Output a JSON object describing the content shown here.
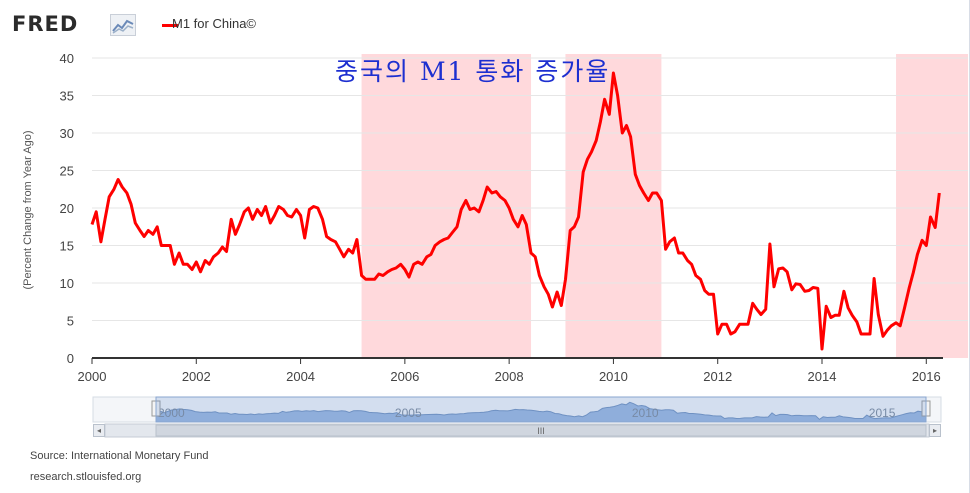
{
  "header": {
    "logo_text": "FRED",
    "logo_icon": "line-graph-icon",
    "series_legend": "M1 for China©"
  },
  "overlay_title": "중국의 M1 통화 증가율",
  "source": {
    "source_text": "Source: International Monetary Fund",
    "site_text": "research.stlouisfed.org"
  },
  "navigator": {
    "tick_labels": [
      "2000",
      "2005",
      "2010",
      "2015"
    ],
    "scroll_grip": "III",
    "left_arrow": "◂",
    "right_arrow": "▸"
  },
  "colors": {
    "series": "#ff0000",
    "recession_band": "#ffd9dc",
    "title_text": "#1d2fd0",
    "navigator_fill": "#9ab6de"
  },
  "chart_data": {
    "type": "line",
    "title": "",
    "ylabel": "(Percent Change from Year Ago)",
    "xlabel": "",
    "xlim": [
      2000,
      2016.8
    ],
    "ylim": [
      0,
      40
    ],
    "y_ticks": [
      0,
      5,
      10,
      15,
      20,
      25,
      30,
      35,
      40
    ],
    "x_ticks": [
      2000,
      2002,
      2004,
      2006,
      2008,
      2010,
      2012,
      2014,
      2016
    ],
    "grid": true,
    "shaded_periods": [
      [
        2005.17,
        2008.42
      ],
      [
        2009.08,
        2010.92
      ],
      [
        2015.42,
        2016.8
      ]
    ],
    "series": [
      {
        "name": "M1 for China©",
        "points": [
          [
            2000.0,
            17.8
          ],
          [
            2000.08,
            19.5
          ],
          [
            2000.17,
            15.5
          ],
          [
            2000.25,
            18.5
          ],
          [
            2000.33,
            21.5
          ],
          [
            2000.42,
            22.5
          ],
          [
            2000.5,
            23.8
          ],
          [
            2000.58,
            22.8
          ],
          [
            2000.67,
            22.0
          ],
          [
            2000.75,
            20.5
          ],
          [
            2000.83,
            18.0
          ],
          [
            2000.92,
            17.0
          ],
          [
            2001.0,
            16.2
          ],
          [
            2001.08,
            17.0
          ],
          [
            2001.17,
            16.5
          ],
          [
            2001.25,
            17.5
          ],
          [
            2001.33,
            15.0
          ],
          [
            2001.42,
            15.0
          ],
          [
            2001.5,
            15.0
          ],
          [
            2001.58,
            12.5
          ],
          [
            2001.67,
            14.0
          ],
          [
            2001.75,
            12.5
          ],
          [
            2001.83,
            12.5
          ],
          [
            2001.92,
            11.8
          ],
          [
            2002.0,
            12.8
          ],
          [
            2002.08,
            11.5
          ],
          [
            2002.17,
            13.0
          ],
          [
            2002.25,
            12.5
          ],
          [
            2002.33,
            13.5
          ],
          [
            2002.42,
            14.0
          ],
          [
            2002.5,
            14.8
          ],
          [
            2002.58,
            14.2
          ],
          [
            2002.67,
            18.5
          ],
          [
            2002.75,
            16.5
          ],
          [
            2002.83,
            17.8
          ],
          [
            2002.92,
            19.5
          ],
          [
            2003.0,
            20.0
          ],
          [
            2003.08,
            18.5
          ],
          [
            2003.17,
            19.8
          ],
          [
            2003.25,
            19.0
          ],
          [
            2003.33,
            20.2
          ],
          [
            2003.42,
            18.0
          ],
          [
            2003.5,
            19.0
          ],
          [
            2003.58,
            20.2
          ],
          [
            2003.67,
            19.8
          ],
          [
            2003.75,
            19.0
          ],
          [
            2003.83,
            18.8
          ],
          [
            2003.92,
            19.8
          ],
          [
            2004.0,
            19.0
          ],
          [
            2004.08,
            16.0
          ],
          [
            2004.17,
            19.8
          ],
          [
            2004.25,
            20.2
          ],
          [
            2004.33,
            20.0
          ],
          [
            2004.42,
            18.5
          ],
          [
            2004.5,
            16.2
          ],
          [
            2004.58,
            15.8
          ],
          [
            2004.67,
            15.5
          ],
          [
            2004.75,
            14.5
          ],
          [
            2004.83,
            13.5
          ],
          [
            2004.92,
            14.5
          ],
          [
            2005.0,
            14.0
          ],
          [
            2005.08,
            15.8
          ],
          [
            2005.17,
            11.0
          ],
          [
            2005.25,
            10.5
          ],
          [
            2005.33,
            10.5
          ],
          [
            2005.42,
            10.5
          ],
          [
            2005.5,
            11.2
          ],
          [
            2005.58,
            11.0
          ],
          [
            2005.67,
            11.5
          ],
          [
            2005.75,
            11.8
          ],
          [
            2005.83,
            12.0
          ],
          [
            2005.92,
            12.5
          ],
          [
            2006.0,
            11.8
          ],
          [
            2006.08,
            10.8
          ],
          [
            2006.17,
            12.5
          ],
          [
            2006.25,
            12.8
          ],
          [
            2006.33,
            12.5
          ],
          [
            2006.42,
            13.5
          ],
          [
            2006.5,
            13.8
          ],
          [
            2006.58,
            15.0
          ],
          [
            2006.67,
            15.5
          ],
          [
            2006.75,
            15.8
          ],
          [
            2006.83,
            16.0
          ],
          [
            2006.92,
            16.8
          ],
          [
            2007.0,
            17.5
          ],
          [
            2007.08,
            19.8
          ],
          [
            2007.17,
            21.0
          ],
          [
            2007.25,
            19.8
          ],
          [
            2007.33,
            20.0
          ],
          [
            2007.42,
            19.5
          ],
          [
            2007.5,
            21.0
          ],
          [
            2007.58,
            22.8
          ],
          [
            2007.67,
            22.0
          ],
          [
            2007.75,
            22.2
          ],
          [
            2007.83,
            21.5
          ],
          [
            2007.92,
            21.0
          ],
          [
            2008.0,
            20.0
          ],
          [
            2008.08,
            18.5
          ],
          [
            2008.17,
            17.5
          ],
          [
            2008.25,
            19.0
          ],
          [
            2008.33,
            17.8
          ],
          [
            2008.42,
            14.0
          ],
          [
            2008.5,
            13.5
          ],
          [
            2008.58,
            11.0
          ],
          [
            2008.67,
            9.5
          ],
          [
            2008.75,
            8.5
          ],
          [
            2008.83,
            6.8
          ],
          [
            2008.92,
            8.8
          ],
          [
            2009.0,
            7.0
          ],
          [
            2009.08,
            10.5
          ],
          [
            2009.17,
            17.0
          ],
          [
            2009.25,
            17.5
          ],
          [
            2009.33,
            18.8
          ],
          [
            2009.42,
            24.8
          ],
          [
            2009.5,
            26.5
          ],
          [
            2009.58,
            27.5
          ],
          [
            2009.67,
            29.0
          ],
          [
            2009.75,
            31.5
          ],
          [
            2009.83,
            34.5
          ],
          [
            2009.92,
            32.5
          ],
          [
            2010.0,
            38.0
          ],
          [
            2010.08,
            35.0
          ],
          [
            2010.17,
            30.0
          ],
          [
            2010.25,
            31.0
          ],
          [
            2010.33,
            29.5
          ],
          [
            2010.42,
            24.5
          ],
          [
            2010.5,
            23.0
          ],
          [
            2010.58,
            22.0
          ],
          [
            2010.67,
            21.0
          ],
          [
            2010.75,
            22.0
          ],
          [
            2010.83,
            22.0
          ],
          [
            2010.92,
            21.0
          ],
          [
            2011.0,
            14.5
          ],
          [
            2011.08,
            15.5
          ],
          [
            2011.17,
            16.0
          ],
          [
            2011.25,
            14.0
          ],
          [
            2011.33,
            14.0
          ],
          [
            2011.42,
            13.0
          ],
          [
            2011.5,
            12.5
          ],
          [
            2011.58,
            11.0
          ],
          [
            2011.67,
            10.5
          ],
          [
            2011.75,
            9.0
          ],
          [
            2011.83,
            8.5
          ],
          [
            2011.92,
            8.5
          ],
          [
            2012.0,
            3.2
          ],
          [
            2012.08,
            4.5
          ],
          [
            2012.17,
            4.5
          ],
          [
            2012.25,
            3.2
          ],
          [
            2012.33,
            3.5
          ],
          [
            2012.42,
            4.5
          ],
          [
            2012.5,
            4.5
          ],
          [
            2012.58,
            4.5
          ],
          [
            2012.67,
            7.3
          ],
          [
            2012.75,
            6.5
          ],
          [
            2012.83,
            5.8
          ],
          [
            2012.92,
            6.5
          ],
          [
            2013.0,
            15.2
          ],
          [
            2013.08,
            9.5
          ],
          [
            2013.17,
            11.9
          ],
          [
            2013.25,
            12.0
          ],
          [
            2013.33,
            11.5
          ],
          [
            2013.42,
            9.1
          ],
          [
            2013.5,
            9.9
          ],
          [
            2013.58,
            9.8
          ],
          [
            2013.67,
            8.9
          ],
          [
            2013.75,
            9.0
          ],
          [
            2013.83,
            9.4
          ],
          [
            2013.92,
            9.3
          ],
          [
            2014.0,
            1.2
          ],
          [
            2014.08,
            6.9
          ],
          [
            2014.17,
            5.4
          ],
          [
            2014.25,
            5.7
          ],
          [
            2014.33,
            5.7
          ],
          [
            2014.42,
            8.9
          ],
          [
            2014.5,
            6.7
          ],
          [
            2014.58,
            5.7
          ],
          [
            2014.67,
            4.8
          ],
          [
            2014.75,
            3.2
          ],
          [
            2014.83,
            3.2
          ],
          [
            2014.92,
            3.2
          ],
          [
            2015.0,
            10.6
          ],
          [
            2015.08,
            5.8
          ],
          [
            2015.17,
            2.9
          ],
          [
            2015.25,
            3.7
          ],
          [
            2015.33,
            4.3
          ],
          [
            2015.42,
            4.7
          ],
          [
            2015.5,
            4.3
          ],
          [
            2015.58,
            6.6
          ],
          [
            2015.67,
            9.3
          ],
          [
            2015.75,
            11.4
          ],
          [
            2015.83,
            13.8
          ],
          [
            2015.92,
            15.7
          ],
          [
            2016.0,
            15.0
          ],
          [
            2016.08,
            18.8
          ],
          [
            2016.17,
            17.4
          ],
          [
            2016.25,
            22.0
          ]
        ]
      }
    ]
  }
}
